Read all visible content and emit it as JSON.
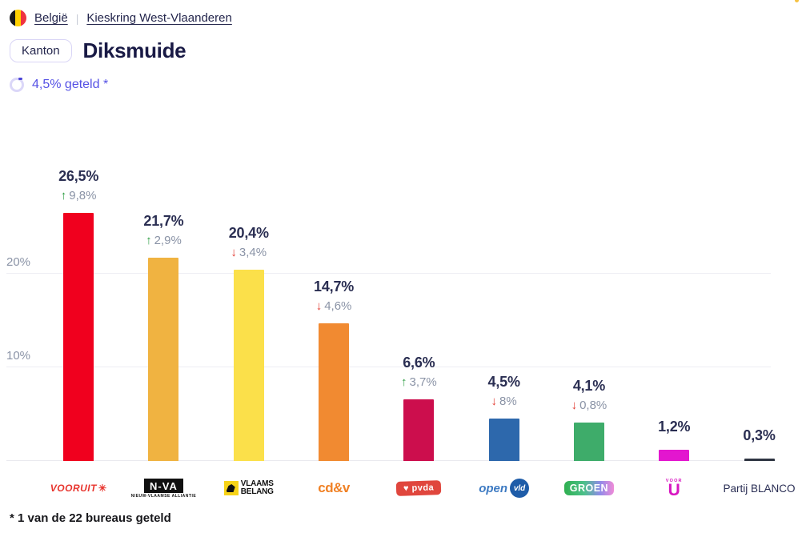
{
  "breadcrumb": {
    "country": "België",
    "separator": "|",
    "region": "Kieskring West-Vlaanderen",
    "flag_colors": {
      "black": "#1A1A1A",
      "yellow": "#FFD100",
      "red": "#EF3340"
    }
  },
  "header": {
    "badge": "Kanton",
    "title": "Diksmuide"
  },
  "progress": {
    "label": "4,5% geteld *",
    "percent": 4.5,
    "accent_color": "#5551E5"
  },
  "chart_data": {
    "type": "bar",
    "title": "",
    "xlabel": "",
    "ylabel": "",
    "unit": "%",
    "ylim": [
      0,
      37.6
    ],
    "grid": "horizontal",
    "yticks": [
      {
        "label": "20%",
        "value": 20
      },
      {
        "label": "10%",
        "value": 10
      }
    ],
    "parties": [
      {
        "name": "Vooruit",
        "value": 26.5,
        "value_label": "26,5%",
        "arrow": "↑",
        "change": "9,8%",
        "change_dir": "up",
        "color": "#F0001E"
      },
      {
        "name": "N-VA",
        "value": 21.7,
        "value_label": "21,7%",
        "arrow": "↑",
        "change": "2,9%",
        "change_dir": "up",
        "color": "#F0B341"
      },
      {
        "name": "Vlaams Belang",
        "value": 20.4,
        "value_label": "20,4%",
        "arrow": "↓",
        "change": "3,4%",
        "change_dir": "down",
        "color": "#FBE04A"
      },
      {
        "name": "cd&v",
        "value": 14.7,
        "value_label": "14,7%",
        "arrow": "↓",
        "change": "4,6%",
        "change_dir": "down",
        "color": "#F18A31"
      },
      {
        "name": "PVDA",
        "value": 6.6,
        "value_label": "6,6%",
        "arrow": "↑",
        "change": "3,7%",
        "change_dir": "up",
        "color": "#CC0E4D"
      },
      {
        "name": "Open Vld",
        "value": 4.5,
        "value_label": "4,5%",
        "arrow": "↓",
        "change": "8%",
        "change_dir": "down",
        "color": "#2D68AC"
      },
      {
        "name": "Groen",
        "value": 4.1,
        "value_label": "4,1%",
        "arrow": "↓",
        "change": "0,8%",
        "change_dir": "down",
        "color": "#3EAC6A"
      },
      {
        "name": "Voor U",
        "value": 1.2,
        "value_label": "1,2%",
        "arrow": "",
        "change": "",
        "change_dir": "",
        "color": "#E316CF"
      },
      {
        "name": "Partij BLANCO",
        "value": 0.3,
        "value_label": "0,3%",
        "arrow": "",
        "change": "",
        "change_dir": "",
        "color": "#2F3542"
      }
    ],
    "logos": {
      "vooruit": {
        "text": "VOORUIT",
        "mark": "✳"
      },
      "nva": {
        "text": "N-VA",
        "sub": "NIEUW-VLAAMSE ALLIANTIE"
      },
      "vb": {
        "line1": "VLAAMS",
        "line2": "BELANG"
      },
      "cdv": {
        "text": "cd&v"
      },
      "pvda": {
        "icon": "♥",
        "text": "pvda"
      },
      "openvld": {
        "text": "open",
        "circle": "vld"
      },
      "groen": {
        "text": "GROEN"
      },
      "vooru": {
        "top": "VOOR",
        "text": "U"
      },
      "blanco": {
        "text": "Partij BLANCO"
      }
    }
  },
  "footnote": "* 1 van de 22 bureaus geteld"
}
